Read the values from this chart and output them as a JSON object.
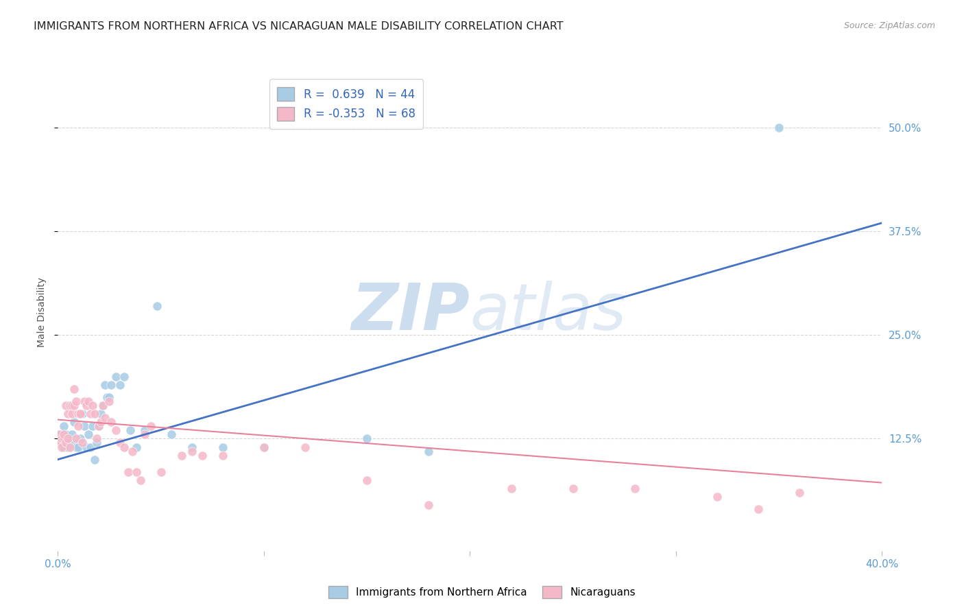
{
  "title": "IMMIGRANTS FROM NORTHERN AFRICA VS NICARAGUAN MALE DISABILITY CORRELATION CHART",
  "source": "Source: ZipAtlas.com",
  "ylabel": "Male Disability",
  "xlim": [
    0.0,
    0.4
  ],
  "ylim": [
    -0.01,
    0.565
  ],
  "yticks": [
    0.125,
    0.25,
    0.375,
    0.5
  ],
  "ytick_labels": [
    "12.5%",
    "25.0%",
    "37.5%",
    "50.0%"
  ],
  "xticks": [
    0.0,
    0.1,
    0.2,
    0.3,
    0.4
  ],
  "xtick_labels": [
    "0.0%",
    "",
    "",
    "",
    "40.0%"
  ],
  "blue_R": 0.639,
  "blue_N": 44,
  "pink_R": -0.353,
  "pink_N": 68,
  "blue_color": "#a8cce4",
  "pink_color": "#f5b8c8",
  "blue_line_color": "#4472c4",
  "pink_line_color": "#e8819a",
  "watermark_color": "#ccddef",
  "blue_scatter_x": [
    0.001,
    0.002,
    0.003,
    0.003,
    0.004,
    0.005,
    0.005,
    0.006,
    0.007,
    0.008,
    0.008,
    0.009,
    0.01,
    0.011,
    0.012,
    0.013,
    0.014,
    0.015,
    0.016,
    0.017,
    0.018,
    0.019,
    0.02,
    0.021,
    0.022,
    0.023,
    0.024,
    0.025,
    0.026,
    0.028,
    0.03,
    0.032,
    0.035,
    0.038,
    0.042,
    0.048,
    0.055,
    0.065,
    0.08,
    0.1,
    0.15,
    0.18,
    0.35
  ],
  "blue_scatter_y": [
    0.13,
    0.12,
    0.14,
    0.115,
    0.13,
    0.125,
    0.115,
    0.165,
    0.13,
    0.145,
    0.12,
    0.115,
    0.115,
    0.125,
    0.155,
    0.14,
    0.115,
    0.13,
    0.115,
    0.14,
    0.1,
    0.12,
    0.14,
    0.155,
    0.165,
    0.19,
    0.175,
    0.175,
    0.19,
    0.2,
    0.19,
    0.2,
    0.135,
    0.115,
    0.135,
    0.285,
    0.13,
    0.115,
    0.115,
    0.115,
    0.125,
    0.11,
    0.5
  ],
  "pink_scatter_x": [
    0.001,
    0.001,
    0.002,
    0.002,
    0.003,
    0.003,
    0.004,
    0.004,
    0.005,
    0.005,
    0.006,
    0.006,
    0.007,
    0.007,
    0.008,
    0.008,
    0.009,
    0.009,
    0.01,
    0.01,
    0.011,
    0.011,
    0.012,
    0.013,
    0.014,
    0.015,
    0.016,
    0.017,
    0.018,
    0.019,
    0.02,
    0.021,
    0.022,
    0.023,
    0.025,
    0.026,
    0.028,
    0.03,
    0.032,
    0.034,
    0.036,
    0.038,
    0.04,
    0.042,
    0.045,
    0.05,
    0.06,
    0.065,
    0.07,
    0.08,
    0.1,
    0.12,
    0.15,
    0.18,
    0.22,
    0.25,
    0.28,
    0.32,
    0.34,
    0.36
  ],
  "pink_scatter_y": [
    0.13,
    0.12,
    0.125,
    0.115,
    0.125,
    0.13,
    0.12,
    0.165,
    0.125,
    0.155,
    0.115,
    0.165,
    0.155,
    0.165,
    0.165,
    0.185,
    0.125,
    0.17,
    0.14,
    0.155,
    0.155,
    0.155,
    0.12,
    0.17,
    0.165,
    0.17,
    0.155,
    0.165,
    0.155,
    0.125,
    0.14,
    0.145,
    0.165,
    0.15,
    0.17,
    0.145,
    0.135,
    0.12,
    0.115,
    0.085,
    0.11,
    0.085,
    0.075,
    0.13,
    0.14,
    0.085,
    0.105,
    0.11,
    0.105,
    0.105,
    0.115,
    0.115,
    0.075,
    0.045,
    0.065,
    0.065,
    0.065,
    0.055,
    0.04,
    0.06
  ],
  "blue_line_x": [
    0.0,
    0.4
  ],
  "blue_line_y_start": 0.1,
  "blue_line_y_end": 0.385,
  "pink_line_x": [
    0.0,
    0.4
  ],
  "pink_line_y_start": 0.148,
  "pink_line_y_end": 0.072,
  "background_color": "#ffffff",
  "grid_color": "#cccccc",
  "title_fontsize": 11.5,
  "axis_label_fontsize": 10,
  "tick_fontsize": 11,
  "tick_color": "#5b9bd5",
  "legend_label_blue": "Immigrants from Northern Africa",
  "legend_label_pink": "Nicaraguans"
}
